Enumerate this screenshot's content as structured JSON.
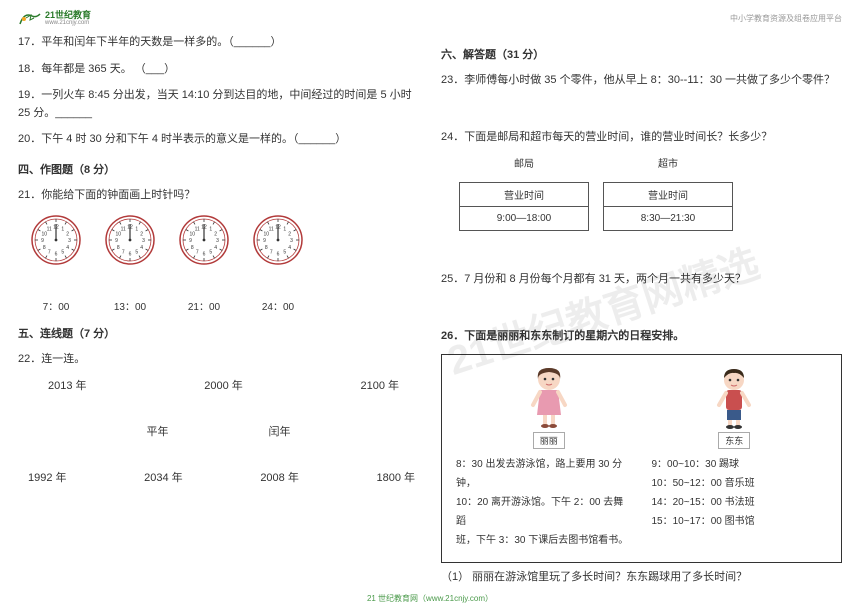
{
  "header": {
    "logo_main": "21世纪教育",
    "logo_sub": "www.21cnjy.com",
    "right_text": "中小学教育资源及组卷应用平台"
  },
  "left": {
    "q17": "17．平年和闰年下半年的天数是一样多的。（______）",
    "q18": "18．每年都是 365 天。    （___）",
    "q19": "19．一列火车 8:45 分出发，当天 14:10 分到达目的地，中间经过的时间是 5 小时 25 分。______",
    "q20": "20．下午 4 时 30 分和下午 4 时半表示的意义是一样的。（______）",
    "section4": "四、作图题（8 分）",
    "q21": "21．你能给下面的钟面画上时针吗？",
    "clock_labels": [
      "7：00",
      "13：00",
      "21：00",
      "24：00"
    ],
    "section5": "五、连线题（7 分）",
    "q22": "22．连一连。",
    "years_top": [
      "2013 年",
      "2000 年",
      "2100 年"
    ],
    "years_mid": [
      "平年",
      "闰年"
    ],
    "years_bot": [
      "1992 年",
      "2034 年",
      "2008 年",
      "1800 年"
    ]
  },
  "right": {
    "section6": "六、解答题（31 分）",
    "q23": "23．李师傅每小时做 35 个零件，他从早上 8：30--11：30 一共做了多少个零件？",
    "q24": "24．下面是邮局和超市每天的营业时间，谁的营业时间长？长多少？",
    "biz": {
      "labels": [
        "邮局",
        "超市"
      ],
      "header": "营业时间",
      "times": [
        "9:00—18:00",
        "8:30—21:30"
      ]
    },
    "q25": "25．7 月份和 8 月份每个月都有 31 天，两个月一共有多少天？",
    "q26": "26．下面是丽丽和东东制订的星期六的日程安排。",
    "avatar_girl": "丽丽",
    "avatar_boy": "东东",
    "schedule_left": [
      "8：30 出发去游泳馆，路上要用 30 分钟，",
      "10：20 离开游泳馆。下午 2：00 去舞蹈",
      "班，下午 3：30 下课后去图书馆看书。"
    ],
    "schedule_right": [
      "9：00~10：30  踢球",
      "10：50~12：00  音乐班",
      "14：20~15：00  书法班",
      "15：10~17：00  图书馆"
    ],
    "q26a": "（1）  丽丽在游泳馆里玩了多长时间？东东踢球用了多长时间？"
  },
  "watermark": "21世纪教育网精选",
  "footer": "21 世纪教育网（www.21cnjy.com）",
  "colors": {
    "clock_stroke": "#b23a3a",
    "clock_tick": "#333333",
    "text": "#333333",
    "logo_green": "#2a7a2a"
  },
  "clock": {
    "radius": 24,
    "inner_radius": 21,
    "stroke_width": 1.5,
    "tick_len": 3,
    "hand_len": 16,
    "hand_width": 1.2
  }
}
